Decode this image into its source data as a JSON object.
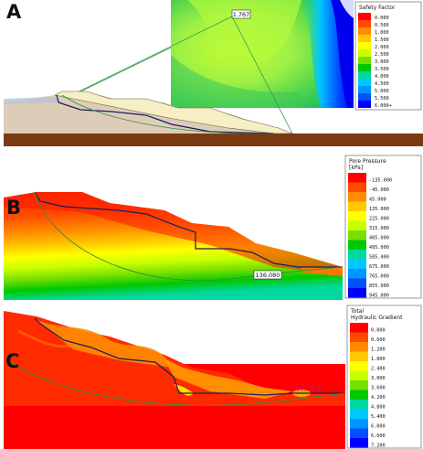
{
  "panels": [
    {
      "id": "A",
      "label": "A",
      "legend_title_lines": [
        "Safety Factor"
      ],
      "legend_values": [
        "0.000",
        "0.500",
        "1.000",
        "1.500",
        "2.000",
        "2.500",
        "3.000",
        "3.500",
        "4.000",
        "4.500",
        "5.000",
        "5.500",
        "6.000+"
      ],
      "factor_of_safety": "1.767"
    },
    {
      "id": "B",
      "label": "B",
      "legend_title_lines": [
        "Pore Pressure",
        "[kPa]"
      ],
      "legend_values": [
        "-135.000",
        "-45.000",
        "45.000",
        "135.000",
        "225.000",
        "315.000",
        "405.000",
        "495.000",
        "585.000",
        "675.000",
        "765.000",
        "855.000",
        "945.000"
      ],
      "slip_surface_label": "136.080"
    },
    {
      "id": "C",
      "label": "C",
      "legend_title_lines": [
        "Total",
        "Hydraulic Gradient"
      ],
      "legend_values": [
        "0.000",
        "0.600",
        "1.200",
        "1.800",
        "2.400",
        "3.000",
        "3.600",
        "4.200",
        "4.800",
        "5.400",
        "6.000",
        "6.600",
        "7.200"
      ]
    }
  ],
  "colors": {
    "safety_factor_scale": [
      "#ff0000",
      "#ff4a00",
      "#ff8c00",
      "#ffc800",
      "#ffff00",
      "#c8ff00",
      "#78e000",
      "#00c800",
      "#00d8a0",
      "#00c8ff",
      "#0096ff",
      "#0050ff",
      "#0000ff"
    ],
    "pore_pressure_scale": [
      "#ff0000",
      "#ff4a00",
      "#ff8c00",
      "#ffc800",
      "#ffff00",
      "#c8ff00",
      "#78e000",
      "#00c800",
      "#00d8a0",
      "#00c8ff",
      "#0096ff",
      "#0050ff",
      "#0000ff"
    ],
    "gradient_scale": [
      "#ff0000",
      "#ff4a00",
      "#ff8c00",
      "#ffc800",
      "#ffff00",
      "#c8ff00",
      "#78e000",
      "#00c800",
      "#00d8a0",
      "#00c8ff",
      "#0096ff",
      "#0050ff",
      "#0000ff"
    ],
    "foundation": "#7a3b12",
    "slope_fill": "#f6f0c8",
    "inner_slope": "#d8c8b8",
    "slip_circle": "#2f8f3f",
    "phreatic": "#1c1c5c"
  }
}
